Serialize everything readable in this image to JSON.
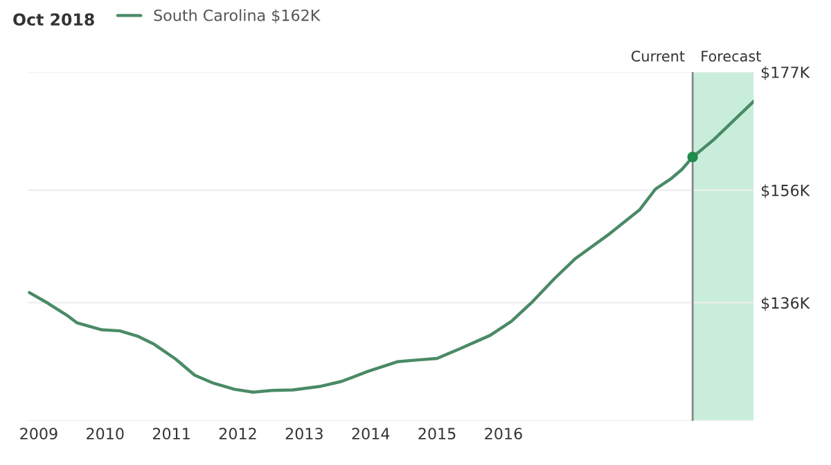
{
  "chart_data": {
    "type": "line",
    "title": "Oct 2018",
    "x": [
      2008.86,
      2009.14,
      2009.42,
      2009.58,
      2009.94,
      2010.22,
      2010.5,
      2010.74,
      2011.06,
      2011.35,
      2011.63,
      2011.95,
      2012.23,
      2012.51,
      2012.83,
      2013.23,
      2013.56,
      2013.96,
      2014.4,
      2014.68,
      2015.0,
      2015.32,
      2015.8,
      2016.12,
      2016.44,
      2016.77,
      2017.09,
      2017.57,
      2018.05,
      2018.29,
      2018.53,
      2018.69,
      2018.85,
      2019.17,
      2019.77
    ],
    "series": [
      {
        "name": "South Carolina $162K",
        "color": "#4a8a66",
        "values": [
          137.8,
          135.9,
          133.8,
          132.4,
          131.2,
          131.0,
          130.0,
          128.6,
          126.0,
          123.1,
          121.7,
          120.6,
          120.1,
          120.4,
          120.5,
          121.1,
          122.0,
          123.8,
          125.5,
          125.8,
          126.1,
          127.7,
          130.2,
          132.7,
          136.2,
          140.3,
          143.9,
          148.0,
          152.5,
          156.2,
          158.1,
          159.7,
          161.9,
          165.0,
          171.8
        ]
      },
      {
        "type": "scatter",
        "marker": "circle",
        "color": "#1f8a4c",
        "x": [
          2018.85
        ],
        "values": [
          161.9
        ]
      }
    ],
    "xlim": [
      2008.83,
      2019.77
    ],
    "xticks": [
      2009,
      2010,
      2011,
      2012,
      2013,
      2014,
      2015,
      2016
    ],
    "ylim": [
      115,
      177
    ],
    "yticks": [
      {
        "value": 115,
        "label": null
      },
      {
        "value": 136,
        "label": "$136K"
      },
      {
        "value": 156,
        "label": "$156K"
      },
      {
        "value": 177,
        "label": "$177K"
      }
    ],
    "ref_lines": [
      {
        "axis": "x",
        "value": 2018.85,
        "label": "Current",
        "color": "#888888"
      }
    ],
    "bands": [
      {
        "axis": "x",
        "from": 2018.85,
        "to": 2019.77,
        "label": "Forecast",
        "color": "#c8eedb"
      }
    ],
    "grid": "y",
    "legend": "top left",
    "line_style": "solid"
  }
}
